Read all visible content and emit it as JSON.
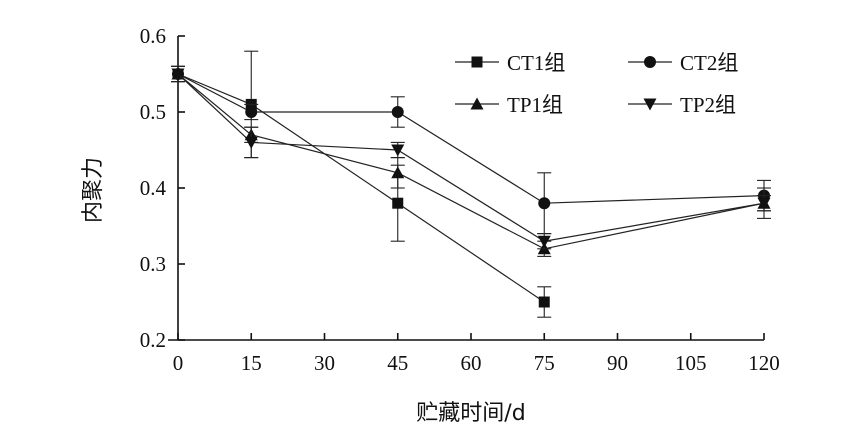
{
  "chart_data": {
    "type": "line",
    "xlabel": "贮藏时间/d",
    "ylabel": "内聚力",
    "xlim": [
      0,
      120
    ],
    "ylim": [
      0.2,
      0.6
    ],
    "x_ticks": [
      0,
      15,
      30,
      45,
      60,
      75,
      90,
      105,
      120
    ],
    "y_ticks": [
      0.2,
      0.3,
      0.4,
      0.5,
      0.6
    ],
    "x_tick_labels": [
      "0",
      "15",
      "30",
      "45",
      "60",
      "75",
      "90",
      "105",
      "120"
    ],
    "y_tick_labels": [
      "0.2",
      "0.3",
      "0.4",
      "0.5",
      "0.6"
    ],
    "grid": false,
    "legend_position": "top-right",
    "series": [
      {
        "name": "CT1组",
        "marker": "square",
        "x": [
          0,
          15,
          45,
          75
        ],
        "values": [
          0.55,
          0.51,
          0.38,
          0.25
        ],
        "errors": [
          0.01,
          0.07,
          0.05,
          0.02
        ]
      },
      {
        "name": "CT2组",
        "marker": "circle",
        "x": [
          0,
          15,
          45,
          75,
          120
        ],
        "values": [
          0.55,
          0.5,
          0.5,
          0.38,
          0.39
        ],
        "errors": [
          0.01,
          0.01,
          0.02,
          0.04,
          0.02
        ]
      },
      {
        "name": "TP1组",
        "marker": "triangle-up",
        "x": [
          0,
          15,
          45,
          75,
          120
        ],
        "values": [
          0.55,
          0.47,
          0.42,
          0.32,
          0.38
        ],
        "errors": [
          0.01,
          0.01,
          0.02,
          0.01,
          0.02
        ]
      },
      {
        "name": "TP2组",
        "marker": "triangle-down",
        "x": [
          0,
          15,
          45,
          75,
          120
        ],
        "values": [
          0.55,
          0.46,
          0.45,
          0.33,
          0.38
        ],
        "errors": [
          0.01,
          0.02,
          0.01,
          0.01,
          0.01
        ]
      }
    ]
  },
  "style": {
    "line_color": "#222222",
    "marker_color": "#111111",
    "background": "#ffffff"
  }
}
